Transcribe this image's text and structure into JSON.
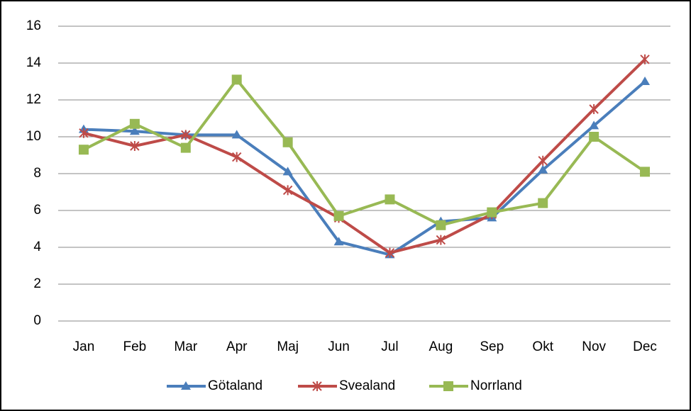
{
  "chart_data": {
    "type": "line",
    "categories": [
      "Jan",
      "Feb",
      "Mar",
      "Apr",
      "Maj",
      "Jun",
      "Jul",
      "Aug",
      "Sep",
      "Okt",
      "Nov",
      "Dec"
    ],
    "series": [
      {
        "name": "Götaland",
        "color": "#4a7ebb",
        "marker": "triangle",
        "values": [
          10.4,
          10.3,
          10.1,
          10.1,
          8.1,
          4.3,
          3.6,
          5.4,
          5.6,
          8.2,
          10.6,
          13.0
        ]
      },
      {
        "name": "Svealand",
        "color": "#be4b48",
        "marker": "star",
        "values": [
          10.2,
          9.5,
          10.1,
          8.9,
          7.1,
          5.6,
          3.7,
          4.4,
          5.8,
          8.7,
          11.5,
          14.2
        ]
      },
      {
        "name": "Norrland",
        "color": "#98b954",
        "marker": "square",
        "values": [
          9.3,
          10.7,
          9.4,
          13.1,
          9.7,
          5.7,
          6.6,
          5.2,
          5.9,
          6.4,
          10.0,
          8.1
        ]
      }
    ],
    "ylim": [
      0,
      16
    ],
    "yticks": [
      0,
      2,
      4,
      6,
      8,
      10,
      12,
      14,
      16
    ],
    "grid": true,
    "legend": "bottom"
  }
}
